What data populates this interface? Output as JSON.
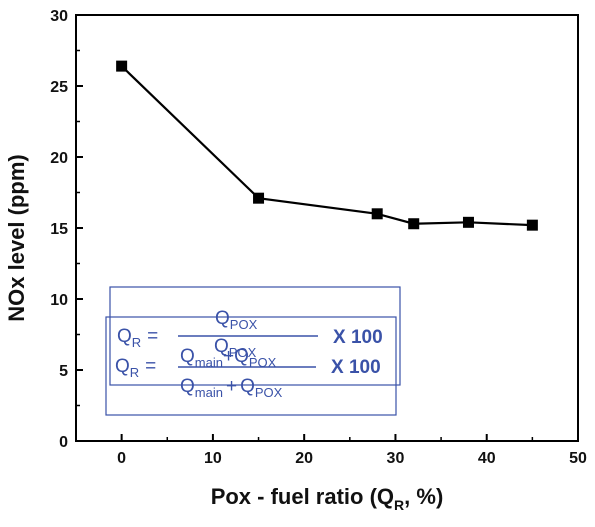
{
  "chart_data": {
    "type": "line",
    "title": "",
    "xlabel_main": "Pox - fuel ratio (Q",
    "xlabel_sub": "R",
    "xlabel_tail": ", %)",
    "ylabel": "NOx level (ppm)",
    "xlim": [
      -5,
      50
    ],
    "ylim": [
      0,
      30
    ],
    "xticks": [
      "0",
      "10",
      "20",
      "30",
      "40",
      "50"
    ],
    "yticks": [
      "0",
      "5",
      "10",
      "15",
      "20",
      "25",
      "30"
    ],
    "grid": false,
    "legend": "none",
    "series": [
      {
        "x": [
          0,
          15,
          28,
          32,
          38,
          45
        ],
        "y": [
          26.4,
          17.1,
          16.0,
          15.3,
          15.4,
          15.2
        ],
        "marker": "square",
        "color": "#000000"
      }
    ]
  },
  "formula": {
    "lhs_main": "Q",
    "lhs_sub": "R",
    "equals": "=",
    "numerator_main": "Q",
    "numerator_sub": "POX",
    "denominator_a_main": "Q",
    "denominator_a_sub": "main",
    "plus": "+",
    "denominator_b_main": "Q",
    "denominator_b_sub": "POX",
    "multiplier": "X 100",
    "color": "#3a52a8"
  }
}
